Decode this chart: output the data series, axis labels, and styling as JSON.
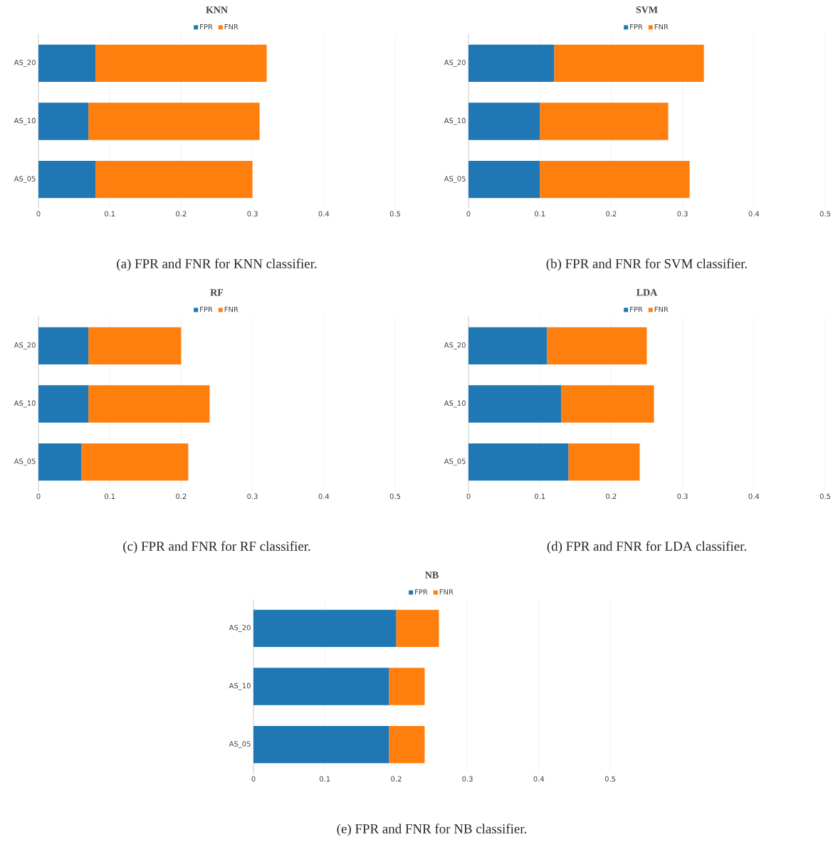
{
  "chart_data": [
    {
      "type": "bar",
      "orientation": "horizontal",
      "stacked": true,
      "title": "KNN",
      "categories": [
        "AS_20",
        "AS_10",
        "AS_05"
      ],
      "series": [
        {
          "name": "FPR",
          "color": "#1f77b4",
          "values": [
            0.08,
            0.07,
            0.08
          ]
        },
        {
          "name": "FNR",
          "color": "#ff7f0e",
          "values": [
            0.24,
            0.24,
            0.22
          ]
        }
      ],
      "xlim": [
        0,
        0.5
      ],
      "xticks": [
        0,
        0.1,
        0.2,
        0.3,
        0.4,
        0.5
      ],
      "grid": "x",
      "legend": "top",
      "annotations": [
        "(a) FPR and FNR for KNN classifier."
      ]
    },
    {
      "type": "bar",
      "orientation": "horizontal",
      "stacked": true,
      "title": "SVM",
      "categories": [
        "AS_20",
        "AS_10",
        "AS_05"
      ],
      "series": [
        {
          "name": "FPR",
          "color": "#1f77b4",
          "values": [
            0.12,
            0.1,
            0.1
          ]
        },
        {
          "name": "FNR",
          "color": "#ff7f0e",
          "values": [
            0.21,
            0.18,
            0.21
          ]
        }
      ],
      "xlim": [
        0,
        0.5
      ],
      "xticks": [
        0,
        0.1,
        0.2,
        0.3,
        0.4,
        0.5
      ],
      "grid": "x",
      "legend": "top",
      "annotations": [
        "(b) FPR and FNR for SVM classifier."
      ]
    },
    {
      "type": "bar",
      "orientation": "horizontal",
      "stacked": true,
      "title": "RF",
      "categories": [
        "AS_20",
        "AS_10",
        "AS_05"
      ],
      "series": [
        {
          "name": "FPR",
          "color": "#1f77b4",
          "values": [
            0.07,
            0.07,
            0.06
          ]
        },
        {
          "name": "FNR",
          "color": "#ff7f0e",
          "values": [
            0.13,
            0.17,
            0.15
          ]
        }
      ],
      "xlim": [
        0,
        0.5
      ],
      "xticks": [
        0,
        0.1,
        0.2,
        0.3,
        0.4,
        0.5
      ],
      "grid": "x",
      "legend": "top",
      "annotations": [
        "(c) FPR and FNR for RF classifier."
      ]
    },
    {
      "type": "bar",
      "orientation": "horizontal",
      "stacked": true,
      "title": "LDA",
      "categories": [
        "AS_20",
        "AS_10",
        "AS_05"
      ],
      "series": [
        {
          "name": "FPR",
          "color": "#1f77b4",
          "values": [
            0.11,
            0.13,
            0.14
          ]
        },
        {
          "name": "FNR",
          "color": "#ff7f0e",
          "values": [
            0.14,
            0.13,
            0.1
          ]
        }
      ],
      "xlim": [
        0,
        0.5
      ],
      "xticks": [
        0,
        0.1,
        0.2,
        0.3,
        0.4,
        0.5
      ],
      "grid": "x",
      "legend": "top",
      "annotations": [
        "(d) FPR and FNR for LDA classifier."
      ]
    },
    {
      "type": "bar",
      "orientation": "horizontal",
      "stacked": true,
      "title": "NB",
      "categories": [
        "AS_20",
        "AS_10",
        "AS_05"
      ],
      "series": [
        {
          "name": "FPR",
          "color": "#1f77b4",
          "values": [
            0.2,
            0.19,
            0.19
          ]
        },
        {
          "name": "FNR",
          "color": "#ff7f0e",
          "values": [
            0.06,
            0.05,
            0.05
          ]
        }
      ],
      "xlim": [
        0,
        0.5
      ],
      "xticks": [
        0,
        0.1,
        0.2,
        0.3,
        0.4,
        0.5
      ],
      "grid": "x",
      "legend": "top",
      "annotations": [
        "(e) FPR and FNR for NB classifier."
      ]
    }
  ]
}
